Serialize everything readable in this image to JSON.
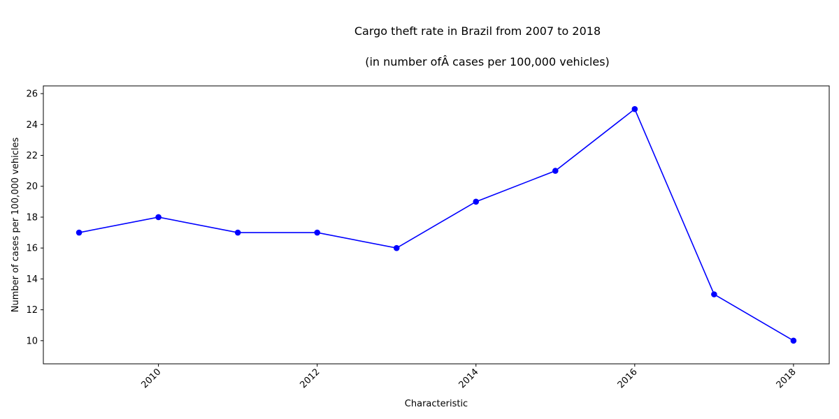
{
  "chart_data": {
    "type": "line",
    "title": "Cargo theft rate in Brazil from 2007 to 2018",
    "subtitle": "(in number ofÂ cases per 100,000 vehicles)",
    "xlabel": "Characteristic",
    "ylabel": "Number of cases per 100,000 vehicles",
    "x": [
      2009,
      2010,
      2011,
      2012,
      2013,
      2014,
      2015,
      2016,
      2017,
      2018
    ],
    "series": [
      {
        "values": [
          17,
          18,
          17,
          17,
          16,
          19,
          21,
          25,
          13,
          10
        ],
        "color": "#0000ff"
      }
    ],
    "xlim": [
      2008.55,
      2018.45
    ],
    "ylim": [
      8.5,
      26.5
    ],
    "xticks": [
      2010,
      2012,
      2014,
      2016,
      2018
    ],
    "yticks": [
      10,
      12,
      14,
      16,
      18,
      20,
      22,
      24,
      26
    ],
    "grid": false,
    "legend": "none"
  }
}
